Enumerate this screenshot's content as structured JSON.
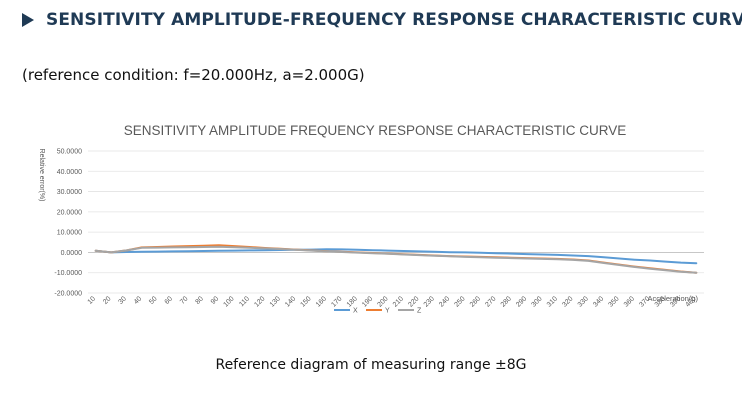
{
  "heading": "SENSITIVITY AMPLITUDE-FREQUENCY RESPONSE CHARACTERISTIC CURVE",
  "condition": "(reference condition: f=20.000Hz, a=2.000G)",
  "caption": "Reference diagram of measuring range  ±8G",
  "colors": {
    "X": "#5b9bd5",
    "Y": "#ed7d31",
    "Z": "#a5a5a5",
    "heading": "#1f3a55"
  },
  "chart_data": {
    "type": "line",
    "title": "SENSITIVITY AMPLITUDE FREQUENCY RESPONSE CHARACTERISTIC CURVE",
    "xlabel": "Acceleration(g)",
    "ylabel": "Relative error(%)",
    "ylim": [
      -20,
      50
    ],
    "yticks": [
      "50.0000",
      "40.0000",
      "30.0000",
      "20.0000",
      "10.0000",
      "0.0000",
      "-10.0000",
      "-20.0000"
    ],
    "ytick_values": [
      50,
      40,
      30,
      20,
      10,
      0,
      -10,
      -20
    ],
    "grid": true,
    "legend": "bottom",
    "categories": [
      "10",
      "20",
      "30",
      "40",
      "50",
      "60",
      "70",
      "80",
      "90",
      "100",
      "110",
      "120",
      "130",
      "140",
      "150",
      "160",
      "170",
      "180",
      "190",
      "200",
      "210",
      "220",
      "230",
      "240",
      "250",
      "260",
      "270",
      "280",
      "290",
      "300",
      "310",
      "320",
      "330",
      "340",
      "350",
      "360",
      "370",
      "380",
      "390",
      "400"
    ],
    "series": [
      {
        "name": "X",
        "values": [
          0.8,
          0,
          0.2,
          0.3,
          0.4,
          0.5,
          0.6,
          0.7,
          0.8,
          0.9,
          1.0,
          1.1,
          1.2,
          1.3,
          1.4,
          1.6,
          1.5,
          1.3,
          1.1,
          0.9,
          0.7,
          0.5,
          0.3,
          0.1,
          0,
          -0.2,
          -0.4,
          -0.6,
          -0.8,
          -1.0,
          -1.2,
          -1.5,
          -1.8,
          -2.4,
          -3.0,
          -3.6,
          -4.0,
          -4.5,
          -5.0,
          -5.3
        ]
      },
      {
        "name": "Y",
        "values": [
          0.8,
          0,
          1.0,
          2.5,
          2.7,
          2.9,
          3.1,
          3.3,
          3.5,
          3.1,
          2.7,
          2.2,
          1.8,
          1.4,
          1.0,
          0.6,
          0.3,
          0,
          -0.3,
          -0.6,
          -0.9,
          -1.2,
          -1.5,
          -1.8,
          -2.0,
          -2.2,
          -2.4,
          -2.6,
          -2.8,
          -3.0,
          -3.2,
          -3.5,
          -4.0,
          -5.0,
          -6.0,
          -7.0,
          -7.8,
          -8.6,
          -9.4,
          -10.0
        ]
      },
      {
        "name": "Z",
        "values": [
          0.8,
          0,
          1.0,
          2.3,
          2.4,
          2.5,
          2.6,
          2.7,
          2.8,
          2.6,
          2.3,
          2.0,
          1.7,
          1.3,
          0.9,
          0.5,
          0.2,
          -0.1,
          -0.4,
          -0.7,
          -1.0,
          -1.3,
          -1.6,
          -1.9,
          -2.2,
          -2.4,
          -2.6,
          -2.8,
          -3.0,
          -3.2,
          -3.4,
          -3.7,
          -4.2,
          -5.2,
          -6.2,
          -7.2,
          -8.0,
          -8.8,
          -9.5,
          -10.0
        ]
      }
    ]
  }
}
